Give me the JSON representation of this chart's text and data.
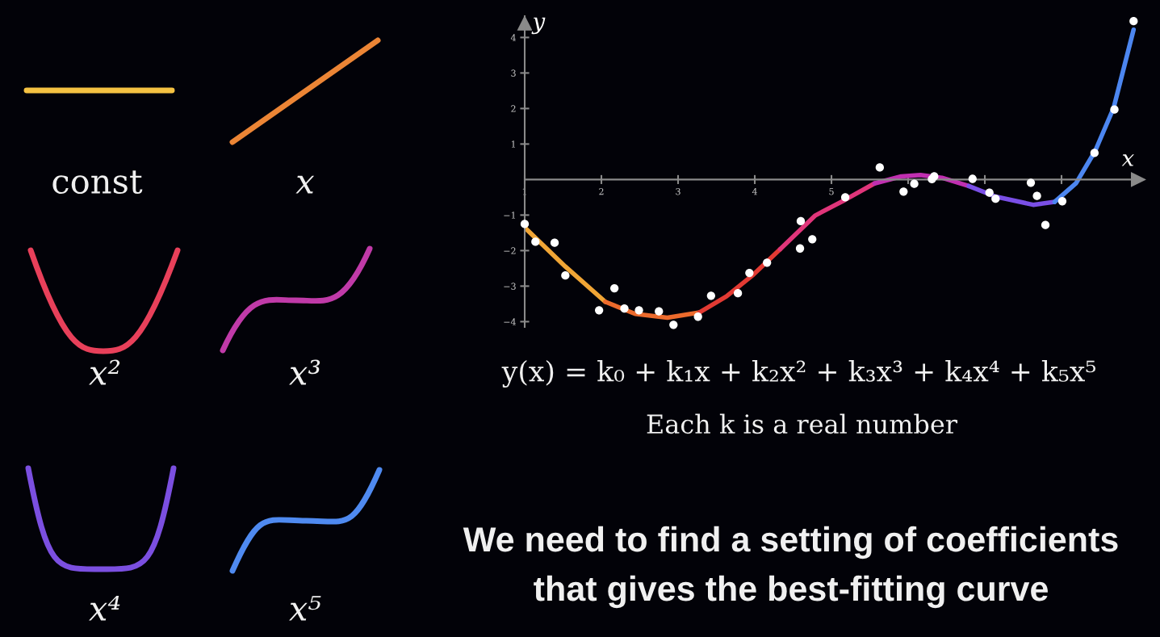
{
  "chart_data": {
    "type": "scatter",
    "xlabel": "x",
    "ylabel": "y",
    "xlim": [
      1,
      9.0
    ],
    "ylim": [
      -4.15,
      4.6
    ],
    "xticks": [
      1,
      2,
      3,
      4,
      5,
      {
        "value": 6,
        "label": null
      },
      {
        "value": 7,
        "label": null
      },
      {
        "value": 8,
        "label": null
      }
    ],
    "yticks": [
      -4,
      -3,
      -2,
      -1,
      1,
      2,
      3,
      4
    ],
    "grid": false,
    "series": [
      {
        "marker": "circle",
        "color": "#ffffff",
        "x": [
          1.0,
          1.14,
          1.39,
          1.53,
          1.97,
          2.17,
          2.3,
          2.49,
          2.75,
          2.94,
          3.26,
          3.43,
          3.78,
          3.93,
          4.16,
          4.6,
          4.59,
          4.75,
          5.17,
          5.18,
          5.63,
          5.94,
          6.08,
          6.31,
          6.34,
          6.84,
          7.06,
          7.14,
          7.6,
          7.68,
          7.79,
          8.01,
          8.43,
          8.69,
          8.94
        ],
        "values": [
          -1.25,
          -1.75,
          -1.78,
          -2.7,
          -3.68,
          -3.06,
          -3.63,
          -3.68,
          -3.71,
          -4.09,
          -3.86,
          -3.27,
          -3.2,
          -2.63,
          -2.34,
          -1.17,
          -1.94,
          -1.68,
          null,
          -0.5,
          0.34,
          -0.34,
          -0.12,
          0.01,
          0.09,
          0.02,
          -0.37,
          -0.54,
          -0.09,
          -0.46,
          -1.28,
          -0.61,
          0.75,
          1.97,
          4.46
        ]
      },
      {
        "type": "line",
        "color": "#f0a535",
        "x": [
          1.0,
          1.53,
          2.05
        ],
        "values": [
          -1.35,
          -2.45,
          -3.44
        ]
      },
      {
        "type": "line",
        "color": "#ec6a2c",
        "x": [
          2.05,
          2.44,
          2.86,
          3.28
        ],
        "values": [
          -3.44,
          -3.78,
          -3.89,
          -3.74
        ]
      },
      {
        "type": "line",
        "color": "#e23a33",
        "x": [
          3.28,
          3.63,
          3.98,
          4.33
        ],
        "values": [
          -3.74,
          -3.29,
          -2.68,
          -1.96
        ]
      },
      {
        "type": "line",
        "color": "#e0357a",
        "x": [
          4.33,
          4.79,
          5.17,
          5.56
        ],
        "values": [
          -1.96,
          -1.01,
          -0.58,
          -0.11
        ]
      },
      {
        "type": "line",
        "color": "#c02fb0",
        "x": [
          5.56,
          5.91,
          6.16,
          6.44,
          6.79
        ],
        "values": [
          -0.11,
          0.09,
          0.13,
          0.05,
          -0.18
        ]
      },
      {
        "type": "line",
        "color": "#7a4fe6",
        "x": [
          6.79,
          7.14,
          7.63,
          7.91
        ],
        "values": [
          -0.18,
          -0.48,
          -0.71,
          -0.63
        ]
      },
      {
        "type": "line",
        "color": "#4c86f0",
        "x": [
          7.91,
          8.19,
          8.44,
          8.68,
          8.94
        ],
        "values": [
          -0.63,
          -0.1,
          0.81,
          2.02,
          4.22
        ]
      }
    ],
    "annotations": [
      "const",
      "x",
      "x²",
      "x³",
      "x⁴",
      "x⁵",
      "y(x) = k₀ + k₁x + k₂x² + k₃x³ + k₄x⁴ + k₅x⁵",
      "Each k is a real number",
      "We need to find a setting of coefficients",
      "that gives the best-fitting curve"
    ]
  }
}
